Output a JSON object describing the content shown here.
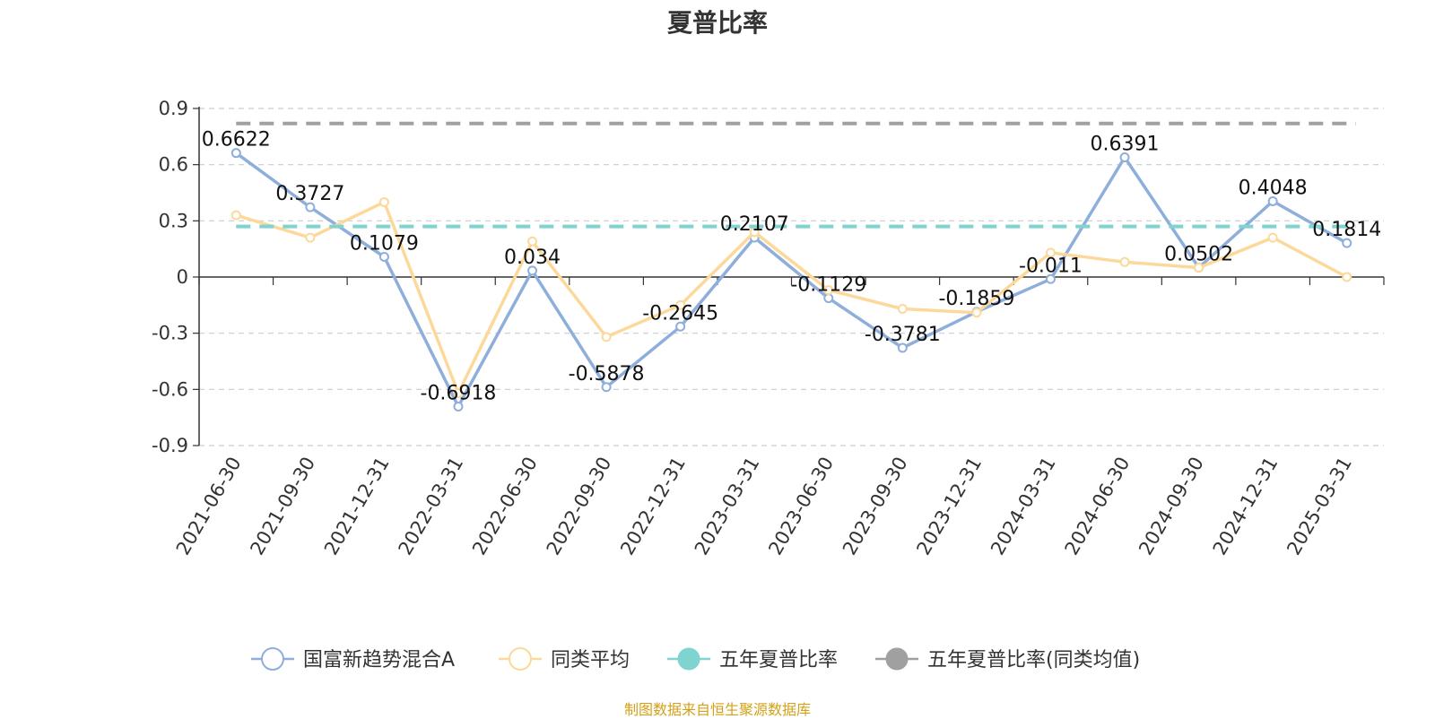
{
  "chart_data": {
    "type": "line",
    "title": "夏普比率",
    "categories": [
      "2021-06-30",
      "2021-09-30",
      "2021-12-31",
      "2022-03-31",
      "2022-06-30",
      "2022-09-30",
      "2022-12-31",
      "2023-03-31",
      "2023-06-30",
      "2023-09-30",
      "2023-12-31",
      "2024-03-31",
      "2024-06-30",
      "2024-09-30",
      "2024-12-31",
      "2025-03-31"
    ],
    "ylim": [
      -0.9,
      0.9
    ],
    "yticks": [
      "0.9",
      "0.6",
      "0.3",
      "0",
      "-0.3",
      "-0.6",
      "-0.9"
    ],
    "ytick_values": [
      0.9,
      0.6,
      0.3,
      0,
      -0.3,
      -0.6,
      -0.9
    ],
    "grid": true,
    "legend_position": "bottom",
    "series": [
      {
        "name": "国富新趋势混合A",
        "color": "#8eaedb",
        "labeled": true,
        "values": [
          0.6622,
          0.3727,
          0.1079,
          -0.6918,
          0.034,
          -0.5878,
          -0.2645,
          0.2107,
          -0.1129,
          -0.3781,
          -0.1859,
          -0.011,
          0.6391,
          0.0502,
          0.4048,
          0.1814
        ],
        "labels": [
          "0.6622",
          "0.3727",
          "0.1079",
          "-0.6918",
          "0.034",
          "-0.5878",
          "-0.2645",
          "0.2107",
          "-0.1129",
          "-0.3781",
          "-0.1859",
          "-0.011",
          "0.6391",
          "0.0502",
          "0.4048",
          "0.1814"
        ]
      },
      {
        "name": "同类平均",
        "color": "#fcd99a",
        "labeled": false,
        "values": [
          0.33,
          0.21,
          0.4,
          -0.62,
          0.19,
          -0.32,
          -0.15,
          0.24,
          -0.07,
          -0.17,
          -0.19,
          0.13,
          0.08,
          0.05,
          0.21,
          0.0
        ]
      },
      {
        "name": "五年夏普比率",
        "color": "#7fd3d0",
        "dashed": true,
        "constant": 0.27
      },
      {
        "name": "五年夏普比率(同类均值)",
        "color": "#a0a0a0",
        "dashed": true,
        "constant": 0.82
      }
    ]
  },
  "source_note": "制图数据来自恒生聚源数据库"
}
